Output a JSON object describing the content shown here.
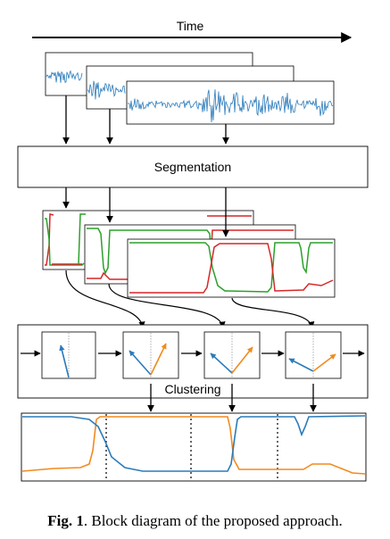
{
  "labels": {
    "time": "Time",
    "segmentation": "Segmentation",
    "clustering": "Clustering"
  },
  "caption": {
    "fig_label": "Fig. 1",
    "text": ". Block diagram of the proposed approach."
  },
  "colors": {
    "blue": "#2b7bba",
    "orange": "#f28a1e",
    "green": "#2ca02c",
    "red": "#d62728",
    "black": "#000000"
  }
}
